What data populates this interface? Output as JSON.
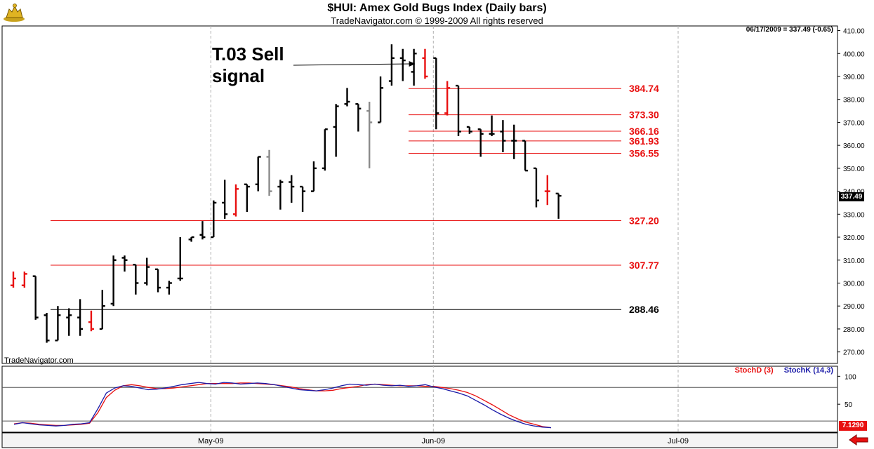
{
  "header": {
    "title": "$HUI:  Amex Gold Bugs Index  (Daily bars)",
    "subtitle": "TradeNavigator.com © 1999-2009 All rights reserved",
    "readout": "06/17/2009 = 337.49 (-0.65)",
    "last_price_label": "337.49"
  },
  "watermark": "TradeNavigator.com",
  "annotation": {
    "line1": "T.03 Sell",
    "line2": "signal"
  },
  "stoch_legend": {
    "d_label": "StochD (3)",
    "k_label": "StochK (14,3)",
    "value_label": "7.1290"
  },
  "colors": {
    "up_bar": "#000000",
    "highlight_bar": "#e81010",
    "gray_bar": "#8a8a8a",
    "level_line": "#e81010",
    "stoch_d": "#e81010",
    "stoch_k": "#1a1aa8",
    "grid_dashed": "#b0b0b0"
  },
  "icons": [
    "gold-bull-logo-icon",
    "back-arrow-icon"
  ],
  "chart_data": [
    {
      "type": "bar",
      "subtype": "ohlc",
      "ylim": [
        265,
        412
      ],
      "y_ticks": [
        270,
        280,
        290,
        300,
        310,
        320,
        330,
        340,
        350,
        360,
        370,
        380,
        390,
        400,
        410
      ],
      "x_tick_labels": [
        {
          "label": "May-09",
          "date": "2009-05-01"
        },
        {
          "label": "Jun-09",
          "date": "2009-06-01"
        },
        {
          "label": "Jul-09",
          "date": "2009-07-01"
        }
      ],
      "grid": "vertical dashed at month starts",
      "bars": [
        {
          "date": "2009-04-06",
          "o": 299,
          "h": 305,
          "l": 298,
          "c": 302,
          "color": "red"
        },
        {
          "date": "2009-04-07",
          "o": 299,
          "h": 305,
          "l": 298,
          "c": 304,
          "color": "red"
        },
        {
          "date": "2009-04-08",
          "o": 303,
          "h": 303,
          "l": 284,
          "c": 285,
          "color": "black"
        },
        {
          "date": "2009-04-09",
          "o": 286,
          "h": 287,
          "l": 274,
          "c": 275,
          "color": "black"
        },
        {
          "date": "2009-04-13",
          "o": 275,
          "h": 290,
          "l": 275,
          "c": 286,
          "color": "black"
        },
        {
          "date": "2009-04-14",
          "o": 285,
          "h": 289,
          "l": 277,
          "c": 286,
          "color": "black"
        },
        {
          "date": "2009-04-15",
          "o": 285,
          "h": 293,
          "l": 277,
          "c": 280,
          "color": "black"
        },
        {
          "date": "2009-04-16",
          "o": 283,
          "h": 288,
          "l": 279,
          "c": 280,
          "color": "red"
        },
        {
          "date": "2009-04-17",
          "o": 280,
          "h": 297,
          "l": 280,
          "c": 290,
          "color": "black"
        },
        {
          "date": "2009-04-20",
          "o": 291,
          "h": 312,
          "l": 290,
          "c": 310,
          "color": "black"
        },
        {
          "date": "2009-04-21",
          "o": 311,
          "h": 312,
          "l": 305,
          "c": 310,
          "color": "black"
        },
        {
          "date": "2009-04-22",
          "o": 308,
          "h": 308,
          "l": 295,
          "c": 300,
          "color": "black"
        },
        {
          "date": "2009-04-23",
          "o": 300,
          "h": 311,
          "l": 299,
          "c": 307,
          "color": "black"
        },
        {
          "date": "2009-04-24",
          "o": 306,
          "h": 306,
          "l": 296,
          "c": 298,
          "color": "black"
        },
        {
          "date": "2009-04-27",
          "o": 298,
          "h": 301,
          "l": 295,
          "c": 300,
          "color": "black"
        },
        {
          "date": "2009-04-28",
          "o": 302,
          "h": 320,
          "l": 301,
          "c": 302,
          "color": "black"
        },
        {
          "date": "2009-04-29",
          "o": 319,
          "h": 320,
          "l": 318,
          "c": 320,
          "color": "black"
        },
        {
          "date": "2009-04-30",
          "o": 321,
          "h": 327,
          "l": 319,
          "c": 320,
          "color": "black"
        },
        {
          "date": "2009-05-01",
          "o": 320,
          "h": 336,
          "l": 320,
          "c": 335,
          "color": "black"
        },
        {
          "date": "2009-05-04",
          "o": 335,
          "h": 345,
          "l": 328,
          "c": 330,
          "color": "black"
        },
        {
          "date": "2009-05-05",
          "o": 330,
          "h": 343,
          "l": 329,
          "c": 341,
          "color": "red"
        },
        {
          "date": "2009-05-06",
          "o": 343,
          "h": 343,
          "l": 331,
          "c": 342,
          "color": "black"
        },
        {
          "date": "2009-05-07",
          "o": 343,
          "h": 355,
          "l": 340,
          "c": 355,
          "color": "black"
        },
        {
          "date": "2009-05-08",
          "o": 355,
          "h": 358,
          "l": 338,
          "c": 340,
          "color": "gray"
        },
        {
          "date": "2009-05-11",
          "o": 342,
          "h": 345,
          "l": 332,
          "c": 344,
          "color": "black"
        },
        {
          "date": "2009-05-12",
          "o": 344,
          "h": 347,
          "l": 335,
          "c": 342,
          "color": "black"
        },
        {
          "date": "2009-05-13",
          "o": 342,
          "h": 342,
          "l": 331,
          "c": 340,
          "color": "black"
        },
        {
          "date": "2009-05-14",
          "o": 340,
          "h": 353,
          "l": 340,
          "c": 350,
          "color": "black"
        },
        {
          "date": "2009-05-15",
          "o": 350,
          "h": 367,
          "l": 349,
          "c": 367,
          "color": "black"
        },
        {
          "date": "2009-05-18",
          "o": 368,
          "h": 378,
          "l": 355,
          "c": 377,
          "color": "black"
        },
        {
          "date": "2009-05-19",
          "o": 378,
          "h": 385,
          "l": 377,
          "c": 379,
          "color": "black"
        },
        {
          "date": "2009-05-20",
          "o": 378,
          "h": 378,
          "l": 366,
          "c": 376,
          "color": "black"
        },
        {
          "date": "2009-05-21",
          "o": 375,
          "h": 379,
          "l": 350,
          "c": 370,
          "color": "gray"
        },
        {
          "date": "2009-05-22",
          "o": 370,
          "h": 390,
          "l": 370,
          "c": 385,
          "color": "black"
        },
        {
          "date": "2009-05-26",
          "o": 388,
          "h": 404,
          "l": 386,
          "c": 398,
          "color": "black"
        },
        {
          "date": "2009-05-27",
          "o": 398,
          "h": 402,
          "l": 388,
          "c": 397,
          "color": "black"
        },
        {
          "date": "2009-05-28",
          "o": 392,
          "h": 402,
          "l": 386,
          "c": 400,
          "color": "black"
        },
        {
          "date": "2009-05-29",
          "o": 398,
          "h": 402,
          "l": 389,
          "c": 390,
          "color": "red"
        },
        {
          "date": "2009-06-01",
          "o": 398,
          "h": 398,
          "l": 367,
          "c": 374,
          "color": "black"
        },
        {
          "date": "2009-06-02",
          "o": 374,
          "h": 388,
          "l": 373,
          "c": 385,
          "color": "red"
        },
        {
          "date": "2009-06-03",
          "o": 386,
          "h": 386,
          "l": 364,
          "c": 366,
          "color": "black"
        },
        {
          "date": "2009-06-04",
          "o": 368,
          "h": 368,
          "l": 365,
          "c": 366,
          "color": "black"
        },
        {
          "date": "2009-06-05",
          "o": 367,
          "h": 367,
          "l": 355,
          "c": 365,
          "color": "black"
        },
        {
          "date": "2009-06-08",
          "o": 365,
          "h": 373,
          "l": 364,
          "c": 365,
          "color": "black"
        },
        {
          "date": "2009-06-09",
          "o": 366,
          "h": 371,
          "l": 357,
          "c": 362,
          "color": "black"
        },
        {
          "date": "2009-06-10",
          "o": 362,
          "h": 369,
          "l": 354,
          "c": 362,
          "color": "black"
        },
        {
          "date": "2009-06-11",
          "o": 362,
          "h": 362,
          "l": 349,
          "c": 349,
          "color": "black"
        },
        {
          "date": "2009-06-12",
          "o": 350,
          "h": 350,
          "l": 333,
          "c": 336,
          "color": "black"
        },
        {
          "date": "2009-06-15",
          "o": 340,
          "h": 347,
          "l": 334,
          "c": 340,
          "color": "red"
        },
        {
          "date": "2009-06-16",
          "o": 339,
          "h": 339,
          "l": 328,
          "c": 338,
          "color": "black"
        }
      ],
      "levels": [
        {
          "label": "384.74",
          "value": 384.74,
          "color": "red"
        },
        {
          "label": "373.30",
          "value": 373.3,
          "color": "red"
        },
        {
          "label": "366.16",
          "value": 366.16,
          "color": "red"
        },
        {
          "label": "361.93",
          "value": 361.93,
          "color": "red"
        },
        {
          "label": "356.55",
          "value": 356.55,
          "color": "red"
        },
        {
          "label": "327.20",
          "value": 327.2,
          "color": "red"
        },
        {
          "label": "307.77",
          "value": 307.77,
          "color": "red"
        },
        {
          "label": "288.46",
          "value": 288.46,
          "color": "black"
        }
      ]
    },
    {
      "type": "line",
      "ylim": [
        0,
        118
      ],
      "y_ticks": [
        50,
        100
      ],
      "ref_lines": [
        80,
        20
      ],
      "series": [
        {
          "name": "StochD (3)",
          "color": "red",
          "values": [
            15,
            17,
            16,
            14,
            13,
            12,
            12,
            13,
            14,
            16,
            35,
            62,
            75,
            83,
            85,
            83,
            80,
            78,
            78,
            79,
            81,
            83,
            85,
            87,
            87,
            87,
            87,
            88,
            88,
            87,
            86,
            85,
            83,
            81,
            78,
            76,
            74,
            74,
            75,
            78,
            80,
            82,
            85,
            86,
            85,
            84,
            83,
            83,
            83,
            82,
            82,
            80,
            78,
            75,
            71,
            65,
            57,
            49,
            40,
            31,
            24,
            18,
            14,
            10,
            8
          ]
        },
        {
          "name": "StochK (14,3)",
          "color": "blue",
          "values": [
            14,
            17,
            15,
            13,
            12,
            11,
            12,
            14,
            15,
            17,
            42,
            70,
            79,
            83,
            82,
            79,
            76,
            77,
            79,
            82,
            85,
            87,
            89,
            87,
            86,
            89,
            88,
            86,
            87,
            88,
            87,
            85,
            82,
            79,
            76,
            75,
            74,
            76,
            79,
            83,
            86,
            85,
            84,
            86,
            84,
            83,
            84,
            82,
            83,
            85,
            81,
            78,
            74,
            70,
            65,
            57,
            49,
            40,
            32,
            25,
            19,
            14,
            11,
            9,
            8
          ]
        }
      ]
    }
  ]
}
